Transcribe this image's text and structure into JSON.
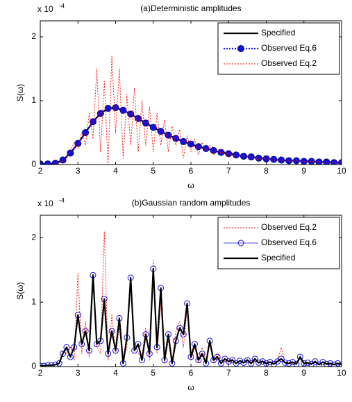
{
  "chart_data": [
    {
      "type": "line",
      "title": "(a)Deterministic amplitudes",
      "xlabel": "ω",
      "ylabel": "S(ω)",
      "y_multiplier": "x 10",
      "y_multiplier_exp": "-4",
      "xlim": [
        2,
        10
      ],
      "xticks": [
        2,
        3,
        4,
        5,
        6,
        7,
        8,
        9,
        10
      ],
      "ylim": [
        0,
        2.25
      ],
      "yticks": [
        0,
        1,
        2
      ],
      "legend": "upper right",
      "series": [
        {
          "name": "Specified",
          "color": "#000000",
          "linestyle": "solid",
          "width": 2.2,
          "marker": "none",
          "x": [
            2,
            2.2,
            2.4,
            2.6,
            2.8,
            3,
            3.2,
            3.4,
            3.6,
            3.8,
            4,
            4.2,
            4.4,
            4.6,
            4.8,
            5,
            5.2,
            5.4,
            5.6,
            5.8,
            6,
            6.2,
            6.4,
            6.6,
            6.8,
            7,
            7.2,
            7.4,
            7.6,
            7.8,
            8,
            8.2,
            8.4,
            8.6,
            8.8,
            9,
            9.2,
            9.4,
            9.6,
            9.8,
            10
          ],
          "values": [
            0.01,
            0.01,
            0.02,
            0.07,
            0.18,
            0.33,
            0.5,
            0.67,
            0.8,
            0.88,
            0.89,
            0.85,
            0.79,
            0.72,
            0.65,
            0.58,
            0.52,
            0.46,
            0.41,
            0.36,
            0.32,
            0.28,
            0.25,
            0.22,
            0.19,
            0.17,
            0.15,
            0.13,
            0.12,
            0.1,
            0.09,
            0.08,
            0.07,
            0.06,
            0.06,
            0.05,
            0.05,
            0.04,
            0.04,
            0.03,
            0.03
          ]
        },
        {
          "name": "Observed Eq.6",
          "color": "#1010e0",
          "linestyle": "dotted",
          "width": 2.2,
          "marker": "filled",
          "x": [
            2,
            2.2,
            2.4,
            2.6,
            2.8,
            3,
            3.2,
            3.4,
            3.6,
            3.8,
            4,
            4.2,
            4.4,
            4.6,
            4.8,
            5,
            5.2,
            5.4,
            5.6,
            5.8,
            6,
            6.2,
            6.4,
            6.6,
            6.8,
            7,
            7.2,
            7.4,
            7.6,
            7.8,
            8,
            8.2,
            8.4,
            8.6,
            8.8,
            9,
            9.2,
            9.4,
            9.6,
            9.8,
            10
          ],
          "values": [
            0.01,
            0.01,
            0.02,
            0.07,
            0.18,
            0.33,
            0.5,
            0.67,
            0.8,
            0.88,
            0.89,
            0.85,
            0.79,
            0.72,
            0.65,
            0.58,
            0.52,
            0.46,
            0.41,
            0.36,
            0.32,
            0.28,
            0.25,
            0.22,
            0.19,
            0.17,
            0.15,
            0.13,
            0.12,
            0.1,
            0.09,
            0.08,
            0.07,
            0.06,
            0.06,
            0.05,
            0.05,
            0.04,
            0.04,
            0.03,
            0.03
          ]
        },
        {
          "name": "Observed Eq.2",
          "color": "#ff0000",
          "linestyle": "dotted",
          "width": 0.9,
          "marker": "none",
          "x": [
            2,
            2.1,
            2.2,
            2.3,
            2.4,
            2.5,
            2.6,
            2.7,
            2.8,
            2.9,
            3,
            3.1,
            3.2,
            3.3,
            3.4,
            3.5,
            3.6,
            3.7,
            3.8,
            3.9,
            4,
            4.1,
            4.2,
            4.3,
            4.4,
            4.5,
            4.6,
            4.7,
            4.8,
            4.9,
            5,
            5.1,
            5.2,
            5.3,
            5.4,
            5.5,
            5.6,
            5.7,
            5.8,
            5.9,
            6,
            6.1,
            6.2,
            6.3,
            6.4,
            6.5,
            6.6,
            6.7,
            6.8,
            6.9,
            7,
            7.1,
            7.2,
            7.3,
            7.4,
            7.5,
            7.6,
            7.7,
            7.8,
            7.9,
            8,
            8.1,
            8.2,
            8.3,
            8.4,
            8.5,
            8.6,
            8.7,
            8.8,
            8.9,
            9,
            9.1,
            9.2,
            9.3,
            9.4,
            9.5,
            9.6,
            9.7,
            9.8,
            9.9,
            10
          ],
          "values": [
            0,
            0,
            0,
            0,
            0.01,
            0.02,
            0.05,
            0.1,
            0.2,
            0.35,
            0.25,
            0.5,
            0.3,
            0.8,
            0.4,
            1.5,
            0.2,
            1.3,
            0,
            1.7,
            0.5,
            1.5,
            0.1,
            1.1,
            0.3,
            1.2,
            0.2,
            1,
            0.3,
            0.9,
            0.2,
            0.8,
            0.3,
            0.7,
            0.2,
            0.6,
            0.3,
            0.55,
            0.1,
            0.45,
            0.2,
            0.4,
            0.15,
            0.35,
            0.2,
            0.3,
            0.15,
            0.25,
            0.18,
            0.2,
            0.12,
            0.18,
            0.1,
            0.16,
            0.12,
            0.14,
            0.1,
            0.12,
            0.08,
            0.1,
            0.09,
            0.08,
            0.07,
            0.08,
            0.06,
            0.07,
            0.06,
            0.05,
            0.06,
            0.05,
            0.05,
            0.04,
            0.05,
            0.04,
            0.04,
            0.04,
            0.03,
            0.04,
            0.03,
            0.03,
            0.03
          ]
        }
      ]
    },
    {
      "type": "line",
      "title": "(b)Gaussian random amplitudes",
      "xlabel": "ω",
      "ylabel": "S(ω)",
      "y_multiplier": "x 10",
      "y_multiplier_exp": "-4",
      "xlim": [
        2,
        10
      ],
      "xticks": [
        2,
        3,
        4,
        5,
        6,
        7,
        8,
        9,
        10
      ],
      "ylim": [
        0,
        2.35
      ],
      "yticks": [
        0,
        1,
        2
      ],
      "legend": "upper right",
      "series": [
        {
          "name": "Observed Eq.2",
          "color": "#ff0000",
          "linestyle": "dotted",
          "width": 0.9,
          "marker": "none",
          "x": [
            2,
            2.1,
            2.2,
            2.3,
            2.4,
            2.5,
            2.6,
            2.7,
            2.8,
            2.9,
            3,
            3.1,
            3.2,
            3.3,
            3.4,
            3.5,
            3.6,
            3.7,
            3.8,
            3.9,
            4,
            4.1,
            4.2,
            4.3,
            4.4,
            4.5,
            4.6,
            4.7,
            4.8,
            4.9,
            5,
            5.1,
            5.2,
            5.3,
            5.4,
            5.5,
            5.6,
            5.7,
            5.8,
            5.9,
            6,
            6.1,
            6.2,
            6.3,
            6.4,
            6.5,
            6.6,
            6.7,
            6.8,
            6.9,
            7,
            7.1,
            7.2,
            7.3,
            7.4,
            7.5,
            7.6,
            7.7,
            7.8,
            7.9,
            8,
            8.1,
            8.2,
            8.3,
            8.4,
            8.5,
            8.6,
            8.7,
            8.8,
            8.9,
            9,
            9.1,
            9.2,
            9.3,
            9.4,
            9.5,
            9.6,
            9.7,
            9.8,
            9.9,
            10
          ],
          "values": [
            0.01,
            0.01,
            0.02,
            0.02,
            0.03,
            0.05,
            0.25,
            0.2,
            0.3,
            0.1,
            1.45,
            0.2,
            0.7,
            0.15,
            1.3,
            0.3,
            0.2,
            2.1,
            0.1,
            0.8,
            0.2,
            0.6,
            0.1,
            0.3,
            1.3,
            0.35,
            0.2,
            0.15,
            0.6,
            0.1,
            1.65,
            0.2,
            1.0,
            0.05,
            0.4,
            0.1,
            0.55,
            0.7,
            0.3,
            0.9,
            0.1,
            0.3,
            0.05,
            0.3,
            0.1,
            0.35,
            0.05,
            0.2,
            0.1,
            0.1,
            0.05,
            0.12,
            0.04,
            0.1,
            0.05,
            0.12,
            0.04,
            0.1,
            0.05,
            0.1,
            0.04,
            0.06,
            0.05,
            0.1,
            0.3,
            0.05,
            0.06,
            0.05,
            0.05,
            0.12,
            0.04,
            0.05,
            0.05,
            0.06,
            0.02,
            0.08,
            0.03,
            0.04,
            0.03,
            0.06,
            0.02
          ]
        },
        {
          "name": "Observed Eq.6",
          "color": "#1010e0",
          "linestyle": "solid",
          "width": 0.7,
          "marker": "hollow",
          "x": [
            2,
            2.1,
            2.2,
            2.3,
            2.4,
            2.5,
            2.6,
            2.7,
            2.8,
            2.9,
            3,
            3.1,
            3.2,
            3.3,
            3.4,
            3.5,
            3.6,
            3.7,
            3.8,
            3.9,
            4,
            4.1,
            4.2,
            4.3,
            4.4,
            4.5,
            4.6,
            4.7,
            4.8,
            4.9,
            5,
            5.1,
            5.2,
            5.3,
            5.4,
            5.5,
            5.6,
            5.7,
            5.8,
            5.9,
            6,
            6.1,
            6.2,
            6.3,
            6.4,
            6.5,
            6.6,
            6.7,
            6.8,
            6.9,
            7,
            7.1,
            7.2,
            7.3,
            7.4,
            7.5,
            7.6,
            7.7,
            7.8,
            7.9,
            8,
            8.1,
            8.2,
            8.3,
            8.4,
            8.5,
            8.6,
            8.7,
            8.8,
            8.9,
            9,
            9.1,
            9.2,
            9.3,
            9.4,
            9.5,
            9.6,
            9.7,
            9.8,
            9.9,
            10
          ],
          "values": [
            0.01,
            0.01,
            0.02,
            0.02,
            0.03,
            0.05,
            0.2,
            0.3,
            0.15,
            0.3,
            0.8,
            0.35,
            0.55,
            0.25,
            1.42,
            0.35,
            0.4,
            1.05,
            0.2,
            0.55,
            0.25,
            0.75,
            0.05,
            0.45,
            1.38,
            0.25,
            0.35,
            0.1,
            0.5,
            0.2,
            1.52,
            0.3,
            1.22,
            0.1,
            0.5,
            0.05,
            0.4,
            0.6,
            0.5,
            0.98,
            0.15,
            0.35,
            0.1,
            0.2,
            0.05,
            0.4,
            0.1,
            0.15,
            0.05,
            0.12,
            0.08,
            0.1,
            0.05,
            0.09,
            0.06,
            0.1,
            0.05,
            0.12,
            0.06,
            0.08,
            0.05,
            0.07,
            0.04,
            0.08,
            0.12,
            0.06,
            0.05,
            0.07,
            0.04,
            0.15,
            0.05,
            0.06,
            0.04,
            0.08,
            0.03,
            0.07,
            0.04,
            0.05,
            0.03,
            0.05,
            0.03
          ]
        },
        {
          "name": "Specified",
          "color": "#000000",
          "linestyle": "solid",
          "width": 2.2,
          "marker": "none",
          "x": [
            2,
            2.1,
            2.2,
            2.3,
            2.4,
            2.5,
            2.6,
            2.7,
            2.8,
            2.9,
            3,
            3.1,
            3.2,
            3.3,
            3.4,
            3.5,
            3.6,
            3.7,
            3.8,
            3.9,
            4,
            4.1,
            4.2,
            4.3,
            4.4,
            4.5,
            4.6,
            4.7,
            4.8,
            4.9,
            5,
            5.1,
            5.2,
            5.3,
            5.4,
            5.5,
            5.6,
            5.7,
            5.8,
            5.9,
            6,
            6.1,
            6.2,
            6.3,
            6.4,
            6.5,
            6.6,
            6.7,
            6.8,
            6.9,
            7,
            7.1,
            7.2,
            7.3,
            7.4,
            7.5,
            7.6,
            7.7,
            7.8,
            7.9,
            8,
            8.1,
            8.2,
            8.3,
            8.4,
            8.5,
            8.6,
            8.7,
            8.8,
            8.9,
            9,
            9.1,
            9.2,
            9.3,
            9.4,
            9.5,
            9.6,
            9.7,
            9.8,
            9.9,
            10
          ],
          "values": [
            0.01,
            0.01,
            0.02,
            0.02,
            0.03,
            0.05,
            0.2,
            0.3,
            0.15,
            0.3,
            0.8,
            0.35,
            0.55,
            0.25,
            1.42,
            0.35,
            0.4,
            1.05,
            0.2,
            0.55,
            0.25,
            0.75,
            0.05,
            0.45,
            1.38,
            0.25,
            0.35,
            0.1,
            0.5,
            0.2,
            1.52,
            0.3,
            1.22,
            0.1,
            0.5,
            0.05,
            0.4,
            0.6,
            0.5,
            0.98,
            0.15,
            0.35,
            0.1,
            0.2,
            0.05,
            0.4,
            0.1,
            0.15,
            0.05,
            0.12,
            0.08,
            0.1,
            0.05,
            0.09,
            0.06,
            0.1,
            0.05,
            0.12,
            0.06,
            0.08,
            0.05,
            0.07,
            0.04,
            0.08,
            0.12,
            0.06,
            0.05,
            0.07,
            0.04,
            0.15,
            0.05,
            0.06,
            0.04,
            0.08,
            0.03,
            0.07,
            0.04,
            0.05,
            0.03,
            0.05,
            0.03
          ]
        }
      ]
    }
  ]
}
